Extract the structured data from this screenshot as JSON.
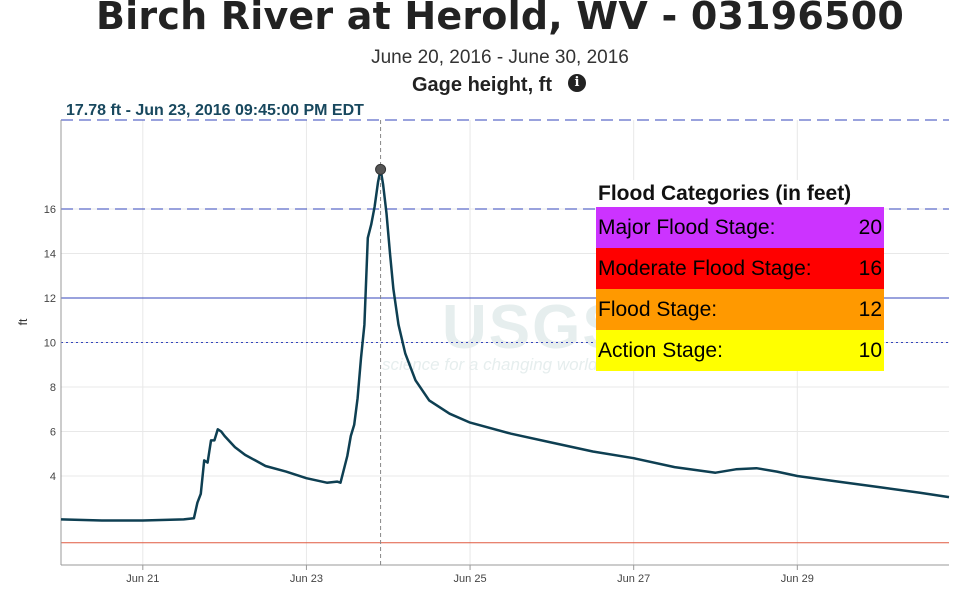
{
  "header": {
    "title": "Birch River at Herold, WV - 03196500",
    "subtitle": "June 20, 2016 - June 30, 2016",
    "parameter": "Gage height, ft",
    "readout": "17.78 ft - Jun 23, 2016 09:45:00 PM EDT"
  },
  "watermark": {
    "logo": "USGS",
    "tagline": "science for a changing world"
  },
  "legend": {
    "title": "Flood Categories (in feet)",
    "items": [
      {
        "label": "Major Flood Stage:",
        "value": "20",
        "color": "#cc33ff"
      },
      {
        "label": "Moderate Flood Stage:",
        "value": "16",
        "color": "#ff0000"
      },
      {
        "label": "Flood Stage:",
        "value": "12",
        "color": "#ff9900"
      },
      {
        "label": "Action Stage:",
        "value": "10",
        "color": "#ffff00"
      }
    ]
  },
  "chart_data": {
    "type": "line",
    "title": "Birch River at Herold, WV - 03196500",
    "subtitle": "June 20, 2016 - June 30, 2016",
    "ylabel": "ft",
    "ylim": [
      0,
      20
    ],
    "xlim": [
      "2016-06-20",
      "2016-06-30 20:30"
    ],
    "x_ticks": [
      "Jun 21",
      "Jun 23",
      "Jun 25",
      "Jun 27",
      "Jun 29"
    ],
    "y_ticks": [
      4,
      6,
      8,
      10,
      12,
      14,
      16
    ],
    "grid": true,
    "series": [
      {
        "color": "#0e3f52",
        "points": [
          [
            "2016-06-20 00:00",
            2.05
          ],
          [
            "2016-06-20 12:00",
            2.0
          ],
          [
            "2016-06-21 00:00",
            2.0
          ],
          [
            "2016-06-21 12:00",
            2.05
          ],
          [
            "2016-06-21 15:00",
            2.1
          ],
          [
            "2016-06-21 16:00",
            2.8
          ],
          [
            "2016-06-21 17:00",
            3.2
          ],
          [
            "2016-06-21 18:00",
            4.7
          ],
          [
            "2016-06-21 19:00",
            4.6
          ],
          [
            "2016-06-21 20:00",
            5.6
          ],
          [
            "2016-06-21 21:00",
            5.6
          ],
          [
            "2016-06-21 22:00",
            6.1
          ],
          [
            "2016-06-21 23:00",
            6.0
          ],
          [
            "2016-06-22 00:00",
            5.8
          ],
          [
            "2016-06-22 03:00",
            5.3
          ],
          [
            "2016-06-22 06:00",
            4.95
          ],
          [
            "2016-06-22 09:00",
            4.7
          ],
          [
            "2016-06-22 12:00",
            4.45
          ],
          [
            "2016-06-22 18:00",
            4.2
          ],
          [
            "2016-06-23 00:00",
            3.9
          ],
          [
            "2016-06-23 06:00",
            3.7
          ],
          [
            "2016-06-23 09:00",
            3.75
          ],
          [
            "2016-06-23 10:00",
            3.7
          ],
          [
            "2016-06-23 12:00",
            4.9
          ],
          [
            "2016-06-23 13:00",
            5.8
          ],
          [
            "2016-06-23 14:00",
            6.3
          ],
          [
            "2016-06-23 15:00",
            7.5
          ],
          [
            "2016-06-23 16:00",
            9.3
          ],
          [
            "2016-06-23 17:00",
            10.8
          ],
          [
            "2016-06-23 18:00",
            14.7
          ],
          [
            "2016-06-23 19:00",
            15.3
          ],
          [
            "2016-06-23 20:00",
            16.1
          ],
          [
            "2016-06-23 21:00",
            17.2
          ],
          [
            "2016-06-23 21:45",
            17.78
          ],
          [
            "2016-06-23 22:30",
            17.1
          ],
          [
            "2016-06-23 23:30",
            15.8
          ],
          [
            "2016-06-24 00:30",
            14.0
          ],
          [
            "2016-06-24 01:30",
            12.4
          ],
          [
            "2016-06-24 03:00",
            10.8
          ],
          [
            "2016-06-24 05:00",
            9.5
          ],
          [
            "2016-06-24 08:00",
            8.3
          ],
          [
            "2016-06-24 12:00",
            7.4
          ],
          [
            "2016-06-24 18:00",
            6.8
          ],
          [
            "2016-06-25 00:00",
            6.4
          ],
          [
            "2016-06-25 12:00",
            5.9
          ],
          [
            "2016-06-26 00:00",
            5.5
          ],
          [
            "2016-06-26 12:00",
            5.1
          ],
          [
            "2016-06-27 00:00",
            4.8
          ],
          [
            "2016-06-27 12:00",
            4.4
          ],
          [
            "2016-06-28 00:00",
            4.15
          ],
          [
            "2016-06-28 06:00",
            4.3
          ],
          [
            "2016-06-28 12:00",
            4.35
          ],
          [
            "2016-06-28 18:00",
            4.2
          ],
          [
            "2016-06-29 00:00",
            4.0
          ],
          [
            "2016-06-29 12:00",
            3.75
          ],
          [
            "2016-06-30 00:00",
            3.5
          ],
          [
            "2016-06-30 12:00",
            3.25
          ],
          [
            "2016-06-30 20:30",
            3.05
          ]
        ]
      }
    ],
    "reference_lines": [
      {
        "value": 20,
        "color": "#3344bb",
        "style": "dashed"
      },
      {
        "value": 16,
        "color": "#3344bb",
        "style": "dashed"
      },
      {
        "value": 12,
        "color": "#3344bb",
        "style": "solid"
      },
      {
        "value": 10,
        "color": "#3344bb",
        "style": "dotted"
      },
      {
        "value": 1.0,
        "color": "#e05a40",
        "style": "solid"
      }
    ],
    "cursor": {
      "x": "2016-06-23 21:45",
      "y": 17.78
    }
  }
}
